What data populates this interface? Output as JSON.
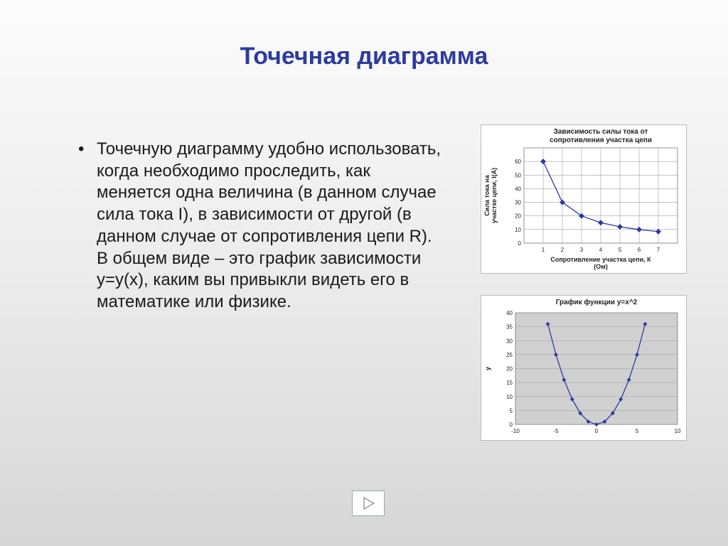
{
  "title": "Точечная диаграмма",
  "bullet": "•",
  "body": "Точечную диаграмму удобно использовать, когда необходимо проследить, как меняется одна величина (в данном случае сила тока I),  в зависимости от другой (в данном случае от сопротивления цепи R). В общем виде – это  график зависимости y=y(x), каким вы привыкли видеть его в математике или физике.",
  "chart1": {
    "type": "scatter-line",
    "title": "Зависимость силы тока от сопротивления участка цепи",
    "xlabel": "Сопротивление участка цепи, К (Ом)",
    "ylabel": "Сила тока на участке цепи, I(А)",
    "x": [
      1,
      2,
      3,
      4,
      5,
      6,
      7
    ],
    "y": [
      60,
      30,
      20,
      15,
      12,
      10,
      8.5
    ],
    "xlim": [
      0,
      8
    ],
    "ylim": [
      0,
      70
    ],
    "yticks": [
      0,
      10,
      20,
      30,
      40,
      50,
      60
    ],
    "xticks": [
      1,
      2,
      3,
      4,
      5,
      6,
      7
    ],
    "line_color": "#2c3ba0",
    "marker_color": "#2c3ba0",
    "marker": "diamond",
    "marker_size": 4,
    "grid_color": "#888888",
    "background_color": "#ffffff",
    "title_fontsize": 10,
    "label_fontsize": 9,
    "tick_fontsize": 8
  },
  "chart2": {
    "type": "scatter-line",
    "title": "График функции y=x^2",
    "xlabel": "",
    "ylabel": "y",
    "x": [
      -6,
      -5,
      -4,
      -3,
      -2,
      -1,
      0,
      1,
      2,
      3,
      4,
      5,
      6
    ],
    "y": [
      36,
      25,
      16,
      9,
      4,
      1,
      0,
      1,
      4,
      9,
      16,
      25,
      36
    ],
    "xlim": [
      -10,
      10
    ],
    "ylim": [
      0,
      40
    ],
    "yticks": [
      0,
      5,
      10,
      15,
      20,
      25,
      30,
      35,
      40
    ],
    "xticks": [
      -10,
      -5,
      0,
      5,
      10
    ],
    "line_color": "#2c3ba0",
    "marker_color": "#2c3ba0",
    "marker": "diamond",
    "marker_size": 3,
    "grid_color": "#9a9a9a",
    "background_color": "#d0d0d0",
    "title_fontsize": 10,
    "label_fontsize": 9,
    "tick_fontsize": 8
  },
  "nav_arrow_color": "#8a98aa"
}
